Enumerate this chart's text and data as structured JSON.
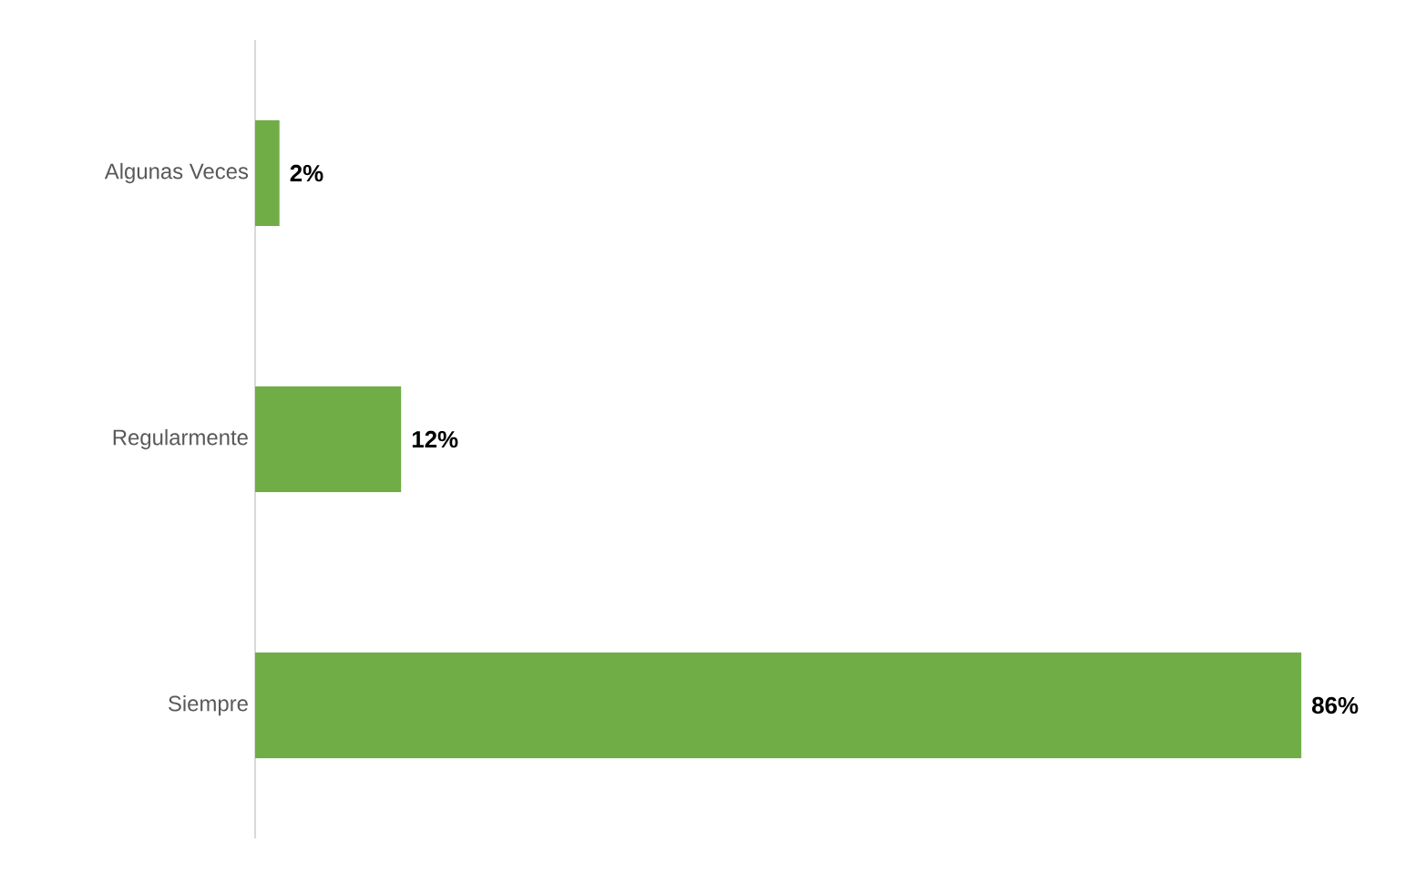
{
  "chart_data": {
    "type": "bar",
    "orientation": "horizontal",
    "categories": [
      "Algunas Veces",
      "Regularmente",
      "Siempre"
    ],
    "values": [
      2,
      12,
      86
    ],
    "value_labels": [
      "2%",
      "12%",
      "86%"
    ],
    "color": "#70ad47"
  }
}
